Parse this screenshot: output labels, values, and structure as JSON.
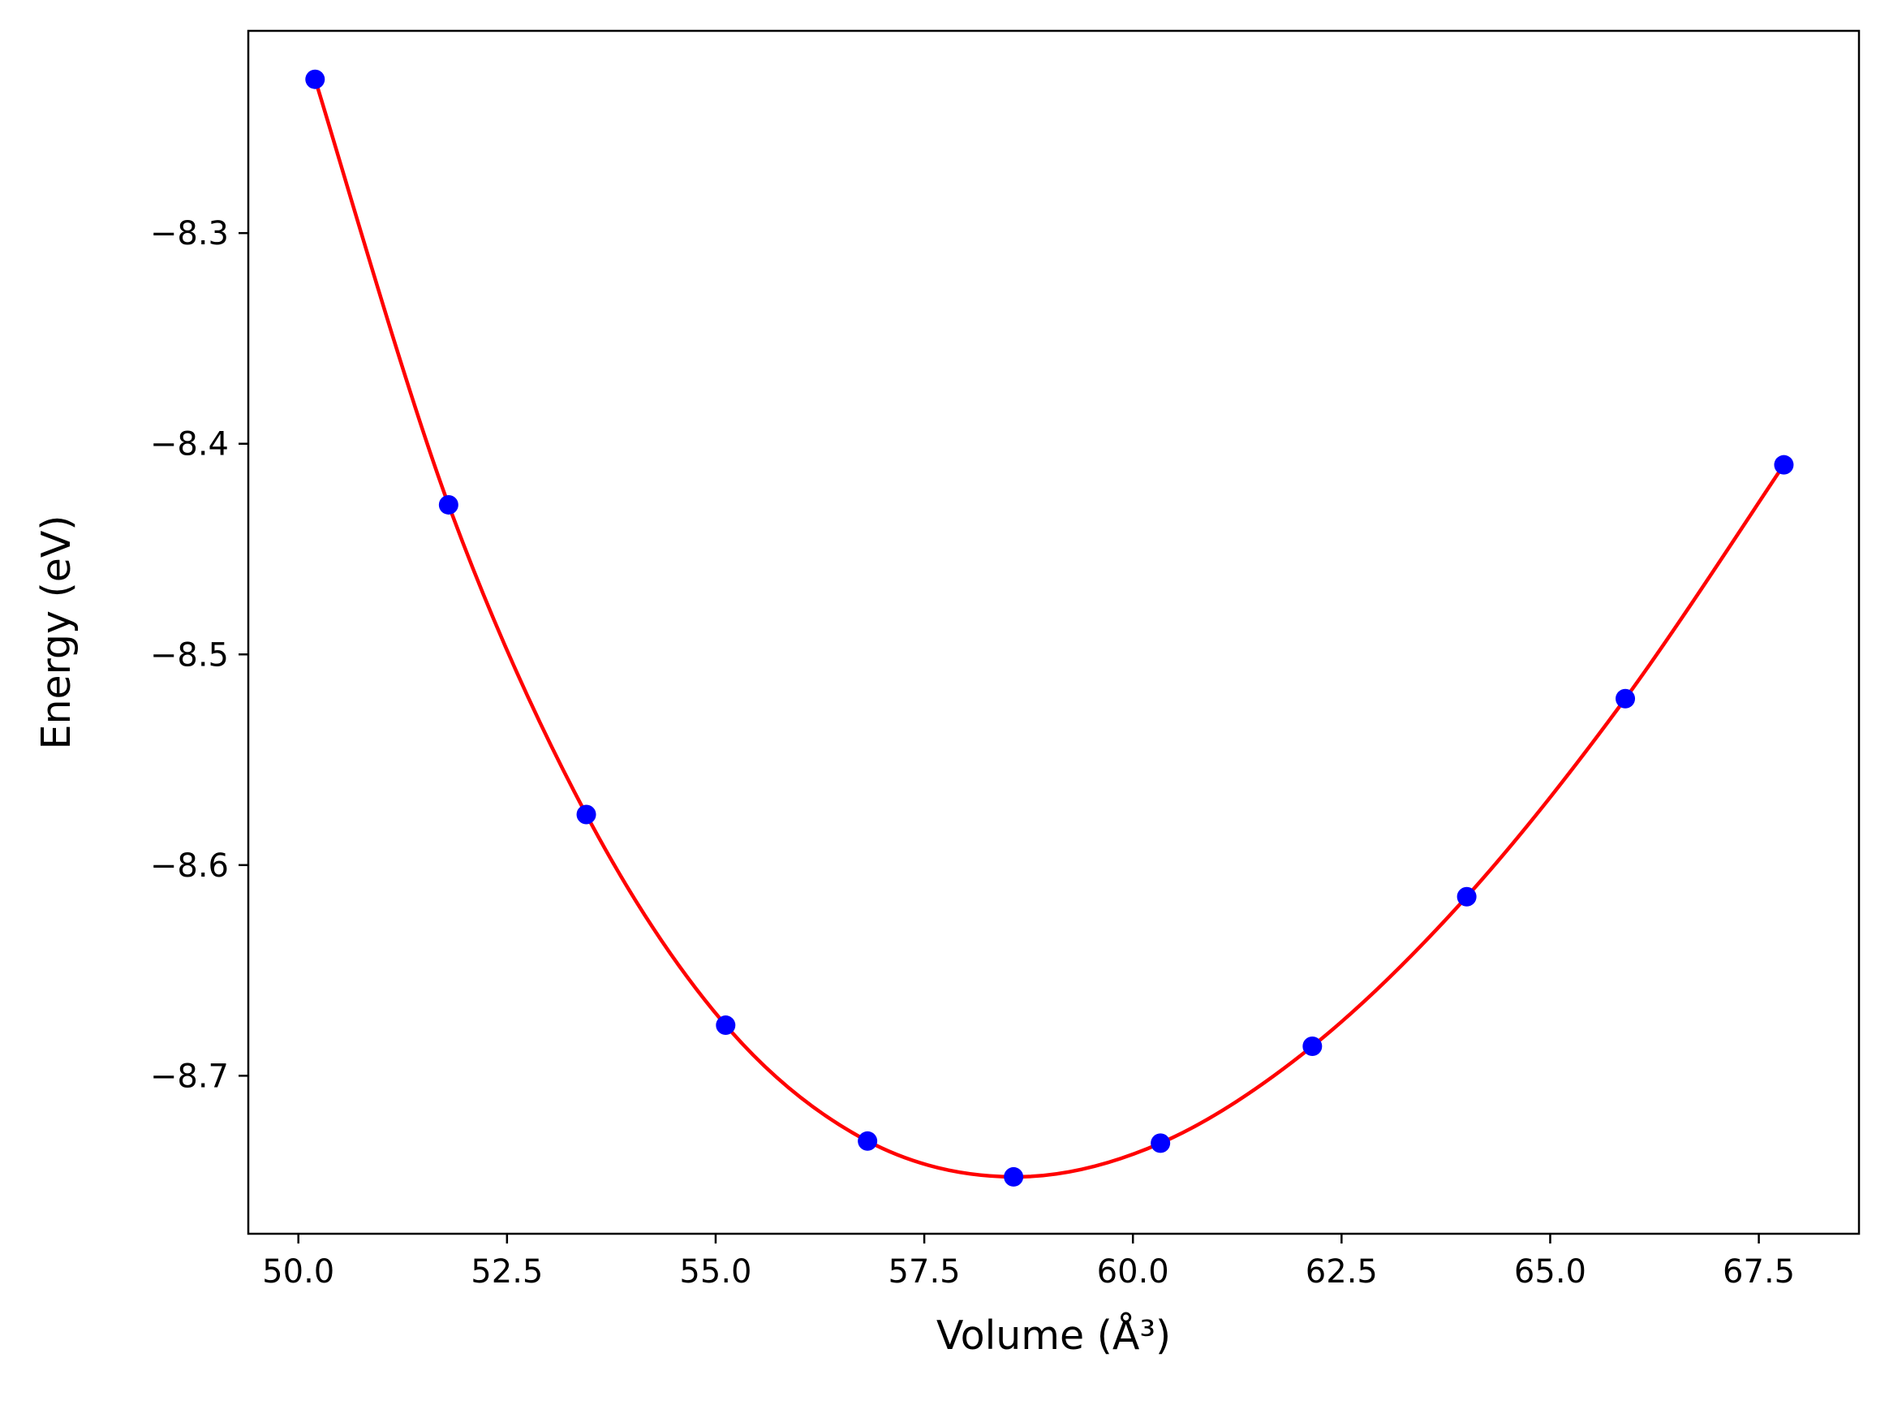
{
  "chart_data": {
    "type": "scatter",
    "xlabel": "Volume (Å³)",
    "ylabel": "Energy (eV)",
    "xlim": [
      49.4,
      68.7
    ],
    "ylim": [
      -8.775,
      -8.204
    ],
    "xticks": [
      50.0,
      52.5,
      55.0,
      57.5,
      60.0,
      62.5,
      65.0,
      67.5
    ],
    "xtick_labels": [
      "50.0",
      "52.5",
      "55.0",
      "57.5",
      "60.0",
      "62.5",
      "65.0",
      "67.5"
    ],
    "yticks": [
      -8.3,
      -8.4,
      -8.5,
      -8.6,
      -8.7
    ],
    "ytick_labels": [
      "−8.3",
      "−8.4",
      "−8.5",
      "−8.6",
      "−8.7"
    ],
    "grid": false,
    "series": [
      {
        "kind": "points",
        "color": "#0000ff",
        "x": [
          50.2,
          51.8,
          53.45,
          55.12,
          56.82,
          58.57,
          60.33,
          62.15,
          64.0,
          65.9,
          67.8
        ],
        "y": [
          -8.227,
          -8.429,
          -8.576,
          -8.676,
          -8.731,
          -8.748,
          -8.732,
          -8.686,
          -8.615,
          -8.521,
          -8.41
        ]
      },
      {
        "kind": "fit-curve",
        "color": "#ff0000",
        "x": [
          50.2,
          51.8,
          53.45,
          55.12,
          56.82,
          58.57,
          60.33,
          62.15,
          64.0,
          65.9,
          67.8
        ],
        "y": [
          -8.227,
          -8.429,
          -8.576,
          -8.676,
          -8.731,
          -8.748,
          -8.732,
          -8.686,
          -8.615,
          -8.521,
          -8.41
        ]
      }
    ]
  }
}
